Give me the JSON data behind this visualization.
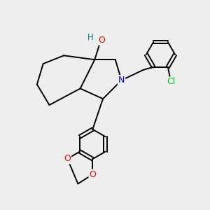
{
  "background_color": "#eeeeee",
  "atom_colors": {
    "O": "#ff0000",
    "N": "#0000ff",
    "Cl": "#00cc00",
    "C": "#000000",
    "H": "#008080"
  },
  "figsize": [
    3.0,
    3.0
  ],
  "dpi": 100
}
